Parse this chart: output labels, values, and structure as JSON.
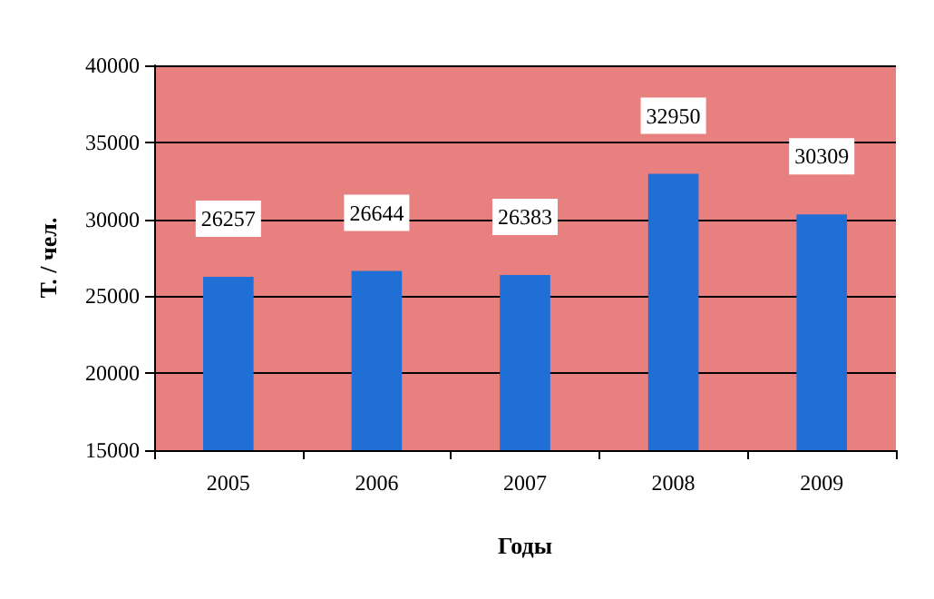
{
  "chart_data": {
    "type": "bar",
    "xlabel": "Годы",
    "ylabel": "Т. / чел.",
    "categories": [
      "2005",
      "2006",
      "2007",
      "2008",
      "2009"
    ],
    "values": [
      26257,
      26644,
      26383,
      32950,
      30309
    ],
    "color": "#1f6fd6",
    "ylim": [
      15000,
      40000
    ],
    "yticks": [
      15000,
      20000,
      25000,
      30000,
      35000,
      40000
    ],
    "grid": "y",
    "data_labels": true
  }
}
